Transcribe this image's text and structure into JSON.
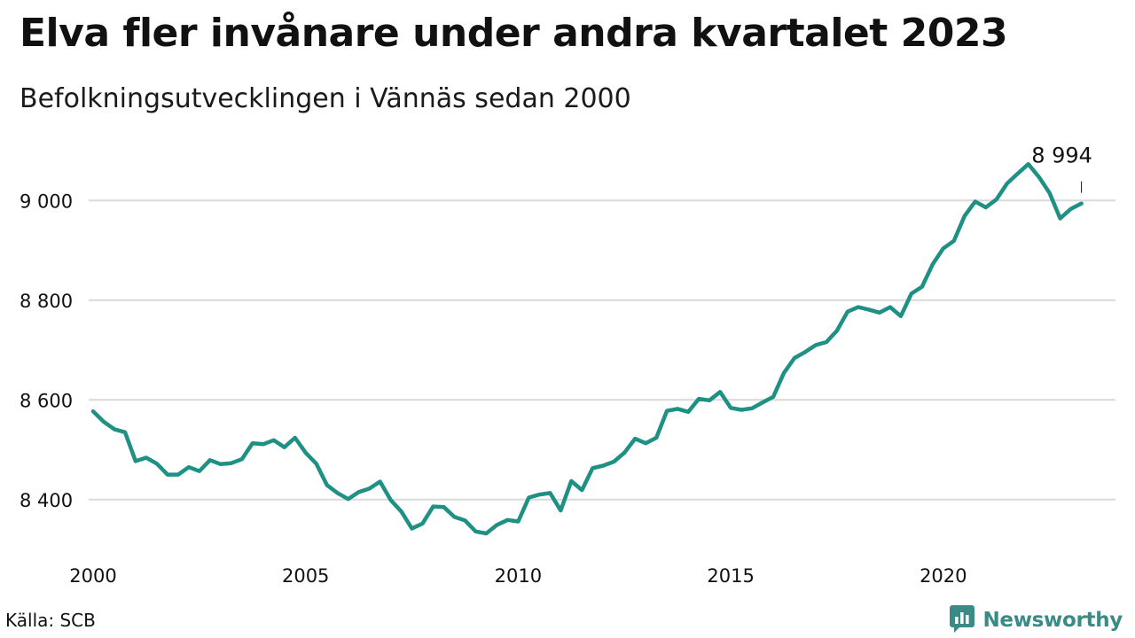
{
  "title": "Elva fler invånare under andra kvartalet 2023",
  "subtitle": "Befolkningsutvecklingen i Vännäs sedan 2000",
  "source": "Källa: SCB",
  "brand": {
    "name": "Newsworthy",
    "icon": "bar-chart-logo-icon",
    "color": "#3a8a85"
  },
  "colors": {
    "line": "#1f9084",
    "grid": "#d9d9d9",
    "text": "#111111"
  },
  "chart_data": {
    "type": "line",
    "title": "Elva fler invånare under andra kvartalet 2023",
    "subtitle": "Befolkningsutvecklingen i Vännäs sedan 2000",
    "xlabel": "",
    "ylabel": "",
    "xlim": [
      2000,
      2023.3
    ],
    "ylim": [
      8300,
      9100
    ],
    "x_ticks": [
      2000,
      2005,
      2010,
      2015,
      2020
    ],
    "x_tick_labels": [
      "2000",
      "2005",
      "2010",
      "2015",
      "2020"
    ],
    "y_ticks": [
      8400,
      8600,
      8800,
      9000
    ],
    "y_tick_labels": [
      "8 400",
      "8 600",
      "8 800",
      "9 000"
    ],
    "grid": "horizontal",
    "last_label": "8 994",
    "x": [
      2000.0,
      2000.25,
      2000.5,
      2000.75,
      2001.0,
      2001.25,
      2001.5,
      2001.75,
      2002.0,
      2002.25,
      2002.5,
      2002.75,
      2003.0,
      2003.25,
      2003.5,
      2003.75,
      2004.0,
      2004.25,
      2004.5,
      2004.75,
      2005.0,
      2005.25,
      2005.5,
      2005.75,
      2006.0,
      2006.25,
      2006.5,
      2006.75,
      2007.0,
      2007.25,
      2007.5,
      2007.75,
      2008.0,
      2008.25,
      2008.5,
      2008.75,
      2009.0,
      2009.25,
      2009.5,
      2009.75,
      2010.0,
      2010.25,
      2010.5,
      2010.75,
      2011.0,
      2011.25,
      2011.5,
      2011.75,
      2012.0,
      2012.25,
      2012.5,
      2012.75,
      2013.0,
      2013.25,
      2013.5,
      2013.75,
      2014.0,
      2014.25,
      2014.5,
      2014.75,
      2015.0,
      2015.25,
      2015.5,
      2015.75,
      2016.0,
      2016.25,
      2016.5,
      2016.75,
      2017.0,
      2017.25,
      2017.5,
      2017.75,
      2018.0,
      2018.25,
      2018.5,
      2018.75,
      2019.0,
      2019.25,
      2019.5,
      2019.75,
      2020.0,
      2020.25,
      2020.5,
      2020.75,
      2021.0,
      2021.25,
      2021.5,
      2021.75,
      2022.0,
      2022.25,
      2022.5,
      2022.75,
      2023.0,
      2023.25
    ],
    "values": [
      8577,
      8556,
      8541,
      8535,
      8477,
      8484,
      8472,
      8450,
      8450,
      8465,
      8457,
      8479,
      8471,
      8473,
      8481,
      8513,
      8511,
      8519,
      8505,
      8524,
      8494,
      8472,
      8429,
      8413,
      8401,
      8415,
      8422,
      8436,
      8399,
      8376,
      8342,
      8352,
      8386,
      8385,
      8365,
      8358,
      8336,
      8332,
      8349,
      8359,
      8356,
      8404,
      8410,
      8413,
      8378,
      8437,
      8419,
      8463,
      8468,
      8476,
      8494,
      8522,
      8513,
      8524,
      8578,
      8582,
      8576,
      8602,
      8599,
      8616,
      8584,
      8580,
      8583,
      8595,
      8606,
      8654,
      8684,
      8696,
      8710,
      8716,
      8739,
      8777,
      8786,
      8781,
      8775,
      8786,
      8768,
      8813,
      8827,
      8872,
      8904,
      8919,
      8969,
      8998,
      8986,
      9002,
      9034,
      9054,
      9073,
      9047,
      9015,
      8964,
      8983,
      8994
    ]
  }
}
